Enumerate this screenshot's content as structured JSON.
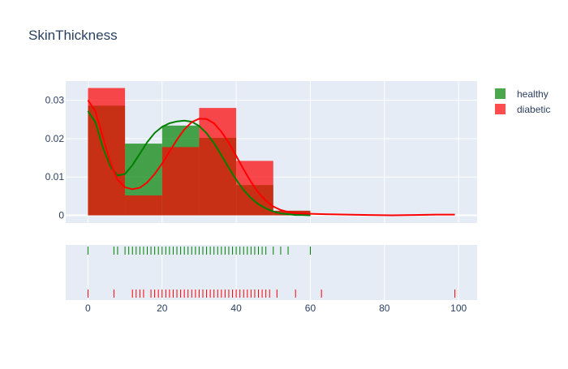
{
  "chart_data": {
    "type": "histogram-kde-rug",
    "title": "SkinThickness",
    "bin_size": 10,
    "bins": [
      0,
      10,
      20,
      30,
      40,
      50,
      60
    ],
    "xlim": [
      -6,
      105
    ],
    "ylim": [
      -0.002,
      0.035
    ],
    "x_ticks": [
      "0",
      "20",
      "40",
      "60",
      "80",
      "100"
    ],
    "x_tick_values": [
      0,
      20,
      40,
      60,
      80,
      100
    ],
    "y_ticks": [
      "0",
      "0.01",
      "0.02",
      "0.03"
    ],
    "y_tick_values": [
      0,
      0.01,
      0.02,
      0.03
    ],
    "grid": true,
    "legend_position": "top-right",
    "series": [
      {
        "name": "healthy",
        "color": "#008000",
        "hist": [
          0.0286,
          0.0187,
          0.0234,
          0.0202,
          0.0079,
          0.0012
        ],
        "kde_x": [
          0,
          2,
          4,
          6,
          8,
          10,
          12,
          14,
          16,
          18,
          20,
          22,
          24,
          26,
          28,
          30,
          32,
          34,
          36,
          38,
          40,
          42,
          44,
          46,
          48,
          50,
          52,
          54,
          56,
          58,
          60
        ],
        "kde_y": [
          0.0272,
          0.0243,
          0.0178,
          0.0128,
          0.0104,
          0.0108,
          0.0131,
          0.0161,
          0.0191,
          0.0215,
          0.0231,
          0.024,
          0.0245,
          0.0247,
          0.0244,
          0.0233,
          0.0214,
          0.0188,
          0.0157,
          0.0124,
          0.0093,
          0.0066,
          0.0045,
          0.0029,
          0.0018,
          0.001,
          0.0005,
          0.0003,
          0.0001,
          0.0001,
          0.0
        ],
        "rug": [
          0,
          7,
          8,
          10,
          11,
          12,
          13,
          14,
          15,
          16,
          17,
          18,
          19,
          20,
          21,
          22,
          23,
          24,
          25,
          26,
          27,
          28,
          29,
          30,
          31,
          32,
          33,
          34,
          35,
          36,
          37,
          38,
          39,
          40,
          41,
          42,
          43,
          44,
          45,
          46,
          47,
          48,
          50,
          52,
          54,
          60
        ]
      },
      {
        "name": "diabetic",
        "color": "#ff0000",
        "hist": [
          0.0332,
          0.0052,
          0.0178,
          0.028,
          0.0142,
          0.0012
        ],
        "kde_x": [
          0,
          2,
          4,
          6,
          8,
          10,
          12,
          14,
          16,
          18,
          20,
          22,
          24,
          26,
          28,
          30,
          32,
          34,
          36,
          38,
          40,
          42,
          44,
          46,
          48,
          50,
          52,
          54,
          56,
          58,
          60,
          64,
          70,
          76,
          82,
          88,
          94,
          99
        ],
        "kde_y": [
          0.03,
          0.0272,
          0.0205,
          0.0138,
          0.0093,
          0.0073,
          0.0068,
          0.0072,
          0.0086,
          0.0108,
          0.0135,
          0.0166,
          0.0197,
          0.0224,
          0.0243,
          0.0252,
          0.0251,
          0.024,
          0.0218,
          0.0189,
          0.0155,
          0.012,
          0.0087,
          0.0059,
          0.0038,
          0.0023,
          0.0014,
          0.0009,
          0.0006,
          0.0005,
          0.0004,
          0.0003,
          0.0002,
          0.0001,
          0.0,
          0.0001,
          0.0002,
          0.0002
        ],
        "rug": [
          0,
          7,
          12,
          13,
          14,
          15,
          17,
          18,
          19,
          20,
          21,
          22,
          23,
          24,
          25,
          26,
          27,
          28,
          29,
          30,
          31,
          32,
          33,
          34,
          35,
          36,
          37,
          38,
          39,
          40,
          41,
          42,
          43,
          44,
          45,
          46,
          47,
          48,
          49,
          51,
          56,
          63,
          99
        ]
      }
    ]
  }
}
